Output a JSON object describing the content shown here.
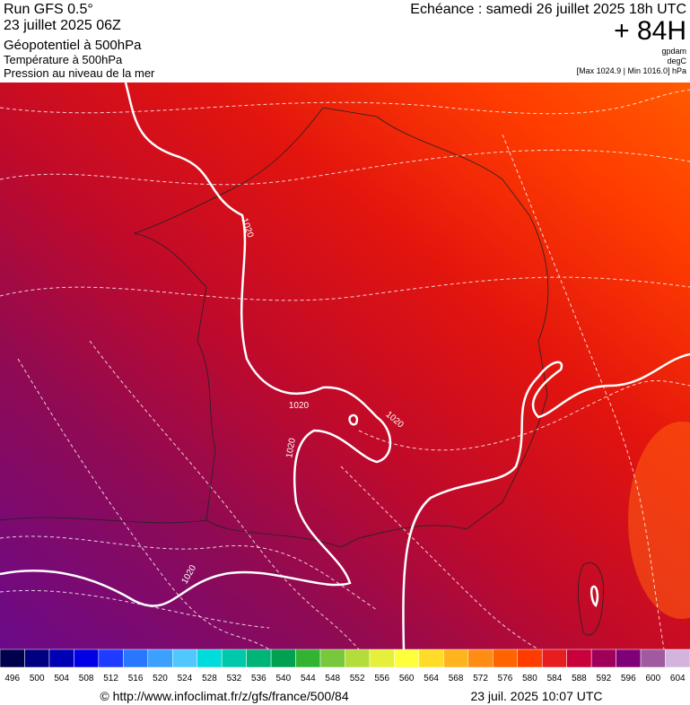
{
  "header": {
    "run": "Run GFS 0.5°",
    "date": "23 juillet 2025 06Z",
    "field1": "Géopotentiel à 500hPa",
    "field2": "Température à 500hPa",
    "field3": "Pression au niveau de la mer",
    "echeance": "Echéance : samedi 26 juillet 2025 18h UTC",
    "lead": "+ 84H",
    "unit1": "gpdam",
    "unit2": "degC",
    "range": "[Max 1024.9 | Min 1016.0] hPa"
  },
  "map": {
    "isobar_labels": [
      "1020",
      "1020",
      "1020",
      "1020",
      "1020"
    ]
  },
  "colorbar": {
    "labels": [
      "496",
      "500",
      "504",
      "508",
      "512",
      "516",
      "520",
      "524",
      "528",
      "532",
      "536",
      "540",
      "544",
      "548",
      "552",
      "556",
      "560",
      "564",
      "568",
      "572",
      "576",
      "580",
      "584",
      "588",
      "592",
      "596",
      "600",
      "604"
    ],
    "colors": [
      "#00004c",
      "#000080",
      "#0000b4",
      "#0000e6",
      "#1e3cff",
      "#2878ff",
      "#3ca0ff",
      "#50c8ff",
      "#00dcdc",
      "#00c8aa",
      "#00b478",
      "#00a050",
      "#32b432",
      "#78c83c",
      "#b4dc3c",
      "#e6f03c",
      "#ffff3c",
      "#ffdc28",
      "#ffb41e",
      "#ff8c14",
      "#ff6400",
      "#ff3c00",
      "#e61e1e",
      "#c8003c",
      "#a0005a",
      "#800078",
      "#a05aa0",
      "#d2b4dc"
    ]
  },
  "footer": {
    "source": "© http://www.infoclimat.fr/z/gfs/france/500/84",
    "timestamp": "23 juil. 2025 10:07 UTC"
  }
}
